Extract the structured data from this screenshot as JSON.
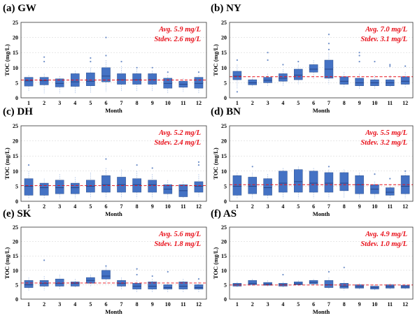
{
  "chart_data": [
    {
      "type": "box",
      "title": "(a) GW",
      "xlabel": "Month",
      "ylabel": "TOC (mg/L)",
      "ylim": [
        0,
        25
      ],
      "yticks": [
        0,
        5,
        10,
        15,
        20,
        25
      ],
      "categories": [
        "1",
        "2",
        "3",
        "4",
        "5",
        "6",
        "7",
        "8",
        "9",
        "10",
        "11",
        "12"
      ],
      "annotation_avg": "Avg. 5.9 mg/L",
      "annotation_stdev": "Stdev. 2.6 mg/L",
      "mean_line": 5.9,
      "boxes": [
        {
          "q1": 3.9,
          "med": 5.6,
          "q3": 6.8,
          "lo": 2.0,
          "hi": 7.5
        },
        {
          "q1": 4.3,
          "med": 5.7,
          "q3": 6.8,
          "lo": 1.5,
          "hi": 8.0
        },
        {
          "q1": 3.6,
          "med": 4.8,
          "q3": 6.3,
          "lo": 1.5,
          "hi": 7.2
        },
        {
          "q1": 3.8,
          "med": 5.3,
          "q3": 8.0,
          "lo": 1.5,
          "hi": 9.0
        },
        {
          "q1": 4.0,
          "med": 5.5,
          "q3": 8.3,
          "lo": 1.5,
          "hi": 10.0
        },
        {
          "q1": 5.3,
          "med": 7.2,
          "q3": 10.0,
          "lo": 2.0,
          "hi": 12.5
        },
        {
          "q1": 4.5,
          "med": 6.0,
          "q3": 8.0,
          "lo": 2.0,
          "hi": 10.5
        },
        {
          "q1": 4.5,
          "med": 6.0,
          "q3": 8.0,
          "lo": 2.0,
          "hi": 9.5
        },
        {
          "q1": 4.5,
          "med": 6.0,
          "q3": 8.0,
          "lo": 2.0,
          "hi": 9.0
        },
        {
          "q1": 3.2,
          "med": 4.8,
          "q3": 6.5,
          "lo": 1.5,
          "hi": 7.5
        },
        {
          "q1": 3.5,
          "med": 4.5,
          "q3": 5.5,
          "lo": 2.0,
          "hi": 6.5
        },
        {
          "q1": 3.2,
          "med": 4.8,
          "q3": 6.8,
          "lo": 1.5,
          "hi": 7.5
        }
      ],
      "outliers": [
        [
          2,
          13.5
        ],
        [
          2,
          12.0
        ],
        [
          5,
          12.0
        ],
        [
          5,
          13.2
        ],
        [
          6,
          20.0
        ],
        [
          6,
          14.0
        ],
        [
          7,
          12.0
        ],
        [
          8,
          10.0
        ],
        [
          9,
          10.0
        ],
        [
          10,
          8.5
        ],
        [
          12,
          8.5
        ]
      ]
    },
    {
      "type": "box",
      "title": "(b) NY",
      "xlabel": "Month",
      "ylabel": "TOC (mg/L)",
      "ylim": [
        0,
        25
      ],
      "yticks": [
        0,
        5,
        10,
        15,
        20,
        25
      ],
      "categories": [
        "1",
        "2",
        "3",
        "4",
        "5",
        "6",
        "7",
        "8",
        "9",
        "10",
        "11",
        "12"
      ],
      "annotation_avg": "Avg. 7.0 mg/L",
      "annotation_stdev": "Stdev. 3.1 mg/L",
      "mean_line": 7.0,
      "boxes": [
        {
          "q1": 6.0,
          "med": 7.2,
          "q3": 8.8,
          "lo": 3.0,
          "hi": 11.0
        },
        {
          "q1": 4.3,
          "med": 5.0,
          "q3": 6.0,
          "lo": 3.5,
          "hi": 7.0
        },
        {
          "q1": 5.0,
          "med": 5.8,
          "q3": 6.8,
          "lo": 4.0,
          "hi": 8.0
        },
        {
          "q1": 5.5,
          "med": 6.5,
          "q3": 8.0,
          "lo": 4.0,
          "hi": 9.5
        },
        {
          "q1": 6.0,
          "med": 7.5,
          "q3": 9.5,
          "lo": 4.5,
          "hi": 11.0
        },
        {
          "q1": 8.5,
          "med": 9.5,
          "q3": 11.0,
          "lo": 6.0,
          "hi": 12.5
        },
        {
          "q1": 6.5,
          "med": 9.5,
          "q3": 12.5,
          "lo": 4.5,
          "hi": 15.0
        },
        {
          "q1": 4.5,
          "med": 5.5,
          "q3": 7.0,
          "lo": 3.5,
          "hi": 8.5
        },
        {
          "q1": 4.0,
          "med": 5.0,
          "q3": 6.5,
          "lo": 3.0,
          "hi": 8.0
        },
        {
          "q1": 4.0,
          "med": 5.0,
          "q3": 6.0,
          "lo": 3.0,
          "hi": 7.5
        },
        {
          "q1": 4.0,
          "med": 5.0,
          "q3": 6.0,
          "lo": 3.5,
          "hi": 7.5
        },
        {
          "q1": 4.5,
          "med": 5.5,
          "q3": 7.0,
          "lo": 3.5,
          "hi": 8.5
        }
      ],
      "outliers": [
        [
          1,
          12.5
        ],
        [
          1,
          2.0
        ],
        [
          3,
          15.0
        ],
        [
          3,
          12.5
        ],
        [
          4,
          11.0
        ],
        [
          5,
          12.0
        ],
        [
          7,
          21.0
        ],
        [
          7,
          18.0
        ],
        [
          7,
          16.0
        ],
        [
          9,
          15.0
        ],
        [
          9,
          12.0
        ],
        [
          9,
          14.0
        ],
        [
          10,
          12.0
        ],
        [
          11,
          11.0
        ],
        [
          11,
          10.5
        ],
        [
          12,
          10.5
        ]
      ]
    },
    {
      "type": "box",
      "title": "(c) DH",
      "xlabel": "Month",
      "ylabel": "TOC (mg/L)",
      "ylim": [
        0,
        25
      ],
      "yticks": [
        0,
        5,
        10,
        15,
        20,
        25
      ],
      "categories": [
        "1",
        "2",
        "3",
        "4",
        "5",
        "6",
        "7",
        "8",
        "9",
        "10",
        "11",
        "12"
      ],
      "annotation_avg": "Avg. 5.2 mg/L",
      "annotation_stdev": "Stdev. 2.4 mg/L",
      "mean_line": 5.2,
      "boxes": [
        {
          "q1": 2.0,
          "med": 5.0,
          "q3": 7.5,
          "lo": 1.0,
          "hi": 10.0
        },
        {
          "q1": 2.0,
          "med": 4.5,
          "q3": 6.0,
          "lo": 1.0,
          "hi": 7.5
        },
        {
          "q1": 2.5,
          "med": 4.5,
          "q3": 7.0,
          "lo": 1.0,
          "hi": 9.0
        },
        {
          "q1": 2.5,
          "med": 4.5,
          "q3": 6.0,
          "lo": 1.0,
          "hi": 8.0
        },
        {
          "q1": 3.0,
          "med": 5.0,
          "q3": 7.0,
          "lo": 1.0,
          "hi": 9.5
        },
        {
          "q1": 3.0,
          "med": 5.5,
          "q3": 8.5,
          "lo": 1.0,
          "hi": 11.0
        },
        {
          "q1": 3.0,
          "med": 5.5,
          "q3": 8.0,
          "lo": 1.0,
          "hi": 10.5
        },
        {
          "q1": 3.0,
          "med": 5.5,
          "q3": 7.5,
          "lo": 1.0,
          "hi": 10.0
        },
        {
          "q1": 3.0,
          "med": 5.5,
          "q3": 7.0,
          "lo": 1.0,
          "hi": 9.0
        },
        {
          "q1": 2.5,
          "med": 4.0,
          "q3": 5.5,
          "lo": 1.0,
          "hi": 7.0
        },
        {
          "q1": 1.5,
          "med": 3.5,
          "q3": 5.5,
          "lo": 1.0,
          "hi": 6.5
        },
        {
          "q1": 3.0,
          "med": 5.0,
          "q3": 6.5,
          "lo": 1.5,
          "hi": 9.0
        }
      ],
      "outliers": [
        [
          1,
          12.0
        ],
        [
          6,
          14.0
        ],
        [
          8,
          12.0
        ],
        [
          9,
          11.0
        ],
        [
          12,
          13.0
        ],
        [
          12,
          12.0
        ]
      ]
    },
    {
      "type": "box",
      "title": "(d) BN",
      "xlabel": "Month",
      "ylabel": "TOC (mg/L)",
      "ylim": [
        0,
        25
      ],
      "yticks": [
        0,
        5,
        10,
        15,
        20,
        25
      ],
      "categories": [
        "1",
        "2",
        "3",
        "4",
        "5",
        "6",
        "7",
        "8",
        "9",
        "10",
        "11",
        "12"
      ],
      "annotation_avg": "Avg. 5.5 mg/L",
      "annotation_stdev": "Stdev. 3.2 mg/L",
      "mean_line": 5.5,
      "boxes": [
        {
          "q1": 2.0,
          "med": 5.0,
          "q3": 8.5,
          "lo": 1.0,
          "hi": 9.5
        },
        {
          "q1": 2.5,
          "med": 5.0,
          "q3": 8.0,
          "lo": 1.0,
          "hi": 9.5
        },
        {
          "q1": 2.0,
          "med": 4.5,
          "q3": 7.5,
          "lo": 1.0,
          "hi": 9.0
        },
        {
          "q1": 3.0,
          "med": 6.0,
          "q3": 10.0,
          "lo": 1.0,
          "hi": 11.0
        },
        {
          "q1": 3.0,
          "med": 6.5,
          "q3": 10.5,
          "lo": 1.0,
          "hi": 11.5
        },
        {
          "q1": 3.0,
          "med": 6.0,
          "q3": 10.0,
          "lo": 1.0,
          "hi": 11.0
        },
        {
          "q1": 3.0,
          "med": 6.0,
          "q3": 9.5,
          "lo": 1.0,
          "hi": 10.5
        },
        {
          "q1": 3.5,
          "med": 6.0,
          "q3": 9.5,
          "lo": 1.0,
          "hi": 10.5
        },
        {
          "q1": 2.5,
          "med": 5.5,
          "q3": 8.5,
          "lo": 1.0,
          "hi": 9.5
        },
        {
          "q1": 2.5,
          "med": 4.0,
          "q3": 5.5,
          "lo": 1.0,
          "hi": 6.5
        },
        {
          "q1": 2.0,
          "med": 3.0,
          "q3": 4.5,
          "lo": 1.0,
          "hi": 5.5
        },
        {
          "q1": 2.5,
          "med": 5.0,
          "q3": 8.5,
          "lo": 1.0,
          "hi": 9.5
        }
      ],
      "outliers": [
        [
          2,
          11.5
        ],
        [
          7,
          11.5
        ],
        [
          10,
          9.0
        ],
        [
          11,
          7.5
        ],
        [
          12,
          10.0
        ]
      ]
    },
    {
      "type": "box",
      "title": "(e) SK",
      "xlabel": "Month",
      "ylabel": "TOC (mg/L)",
      "ylim": [
        0,
        25
      ],
      "yticks": [
        0,
        5,
        10,
        15,
        20,
        25
      ],
      "categories": [
        "1",
        "2",
        "3",
        "4",
        "5",
        "6",
        "7",
        "8",
        "9",
        "10",
        "11",
        "12"
      ],
      "annotation_avg": "Avg. 5.6 mg/L",
      "annotation_stdev": "Stdev. 1.8 mg/L",
      "mean_line": 5.6,
      "boxes": [
        {
          "q1": 4.0,
          "med": 5.0,
          "q3": 6.5,
          "lo": 3.0,
          "hi": 7.5
        },
        {
          "q1": 4.5,
          "med": 5.5,
          "q3": 6.5,
          "lo": 3.0,
          "hi": 8.0
        },
        {
          "q1": 4.5,
          "med": 5.5,
          "q3": 7.0,
          "lo": 3.5,
          "hi": 8.5
        },
        {
          "q1": 4.5,
          "med": 5.5,
          "q3": 6.0,
          "lo": 4.0,
          "hi": 7.0
        },
        {
          "q1": 5.5,
          "med": 6.5,
          "q3": 7.5,
          "lo": 4.5,
          "hi": 8.5
        },
        {
          "q1": 7.0,
          "med": 8.0,
          "q3": 10.0,
          "lo": 5.0,
          "hi": 11.0
        },
        {
          "q1": 4.5,
          "med": 5.5,
          "q3": 6.5,
          "lo": 3.5,
          "hi": 7.5
        },
        {
          "q1": 3.5,
          "med": 4.5,
          "q3": 5.5,
          "lo": 2.5,
          "hi": 6.5
        },
        {
          "q1": 3.5,
          "med": 4.5,
          "q3": 6.0,
          "lo": 2.5,
          "hi": 7.0
        },
        {
          "q1": 3.5,
          "med": 4.0,
          "q3": 5.0,
          "lo": 2.5,
          "hi": 6.0
        },
        {
          "q1": 3.5,
          "med": 4.5,
          "q3": 6.0,
          "lo": 2.5,
          "hi": 7.0
        },
        {
          "q1": 3.5,
          "med": 4.0,
          "q3": 5.0,
          "lo": 2.5,
          "hi": 6.0
        }
      ],
      "outliers": [
        [
          2,
          13.5
        ],
        [
          6,
          11.5
        ],
        [
          8,
          10.5
        ],
        [
          8,
          8.5
        ],
        [
          9,
          8.0
        ],
        [
          10,
          9.5
        ],
        [
          12,
          7.0
        ]
      ]
    },
    {
      "type": "box",
      "title": "(f) AS",
      "xlabel": "Month",
      "ylabel": "TOC (mg/L)",
      "ylim": [
        0,
        25
      ],
      "yticks": [
        0,
        5,
        10,
        15,
        20,
        25
      ],
      "categories": [
        "1",
        "2",
        "3",
        "4",
        "5",
        "6",
        "7",
        "8",
        "9",
        "10",
        "11",
        "12"
      ],
      "annotation_avg": "Avg. 4.9 mg/L",
      "annotation_stdev": "Stdev. 1.0 mg/L",
      "mean_line": 4.9,
      "boxes": [
        {
          "q1": 4.5,
          "med": 5.0,
          "q3": 5.5,
          "lo": 4.0,
          "hi": 6.0
        },
        {
          "q1": 5.0,
          "med": 5.5,
          "q3": 6.5,
          "lo": 4.5,
          "hi": 7.0
        },
        {
          "q1": 4.8,
          "med": 5.2,
          "q3": 5.8,
          "lo": 4.3,
          "hi": 6.5
        },
        {
          "q1": 4.5,
          "med": 5.0,
          "q3": 5.5,
          "lo": 4.0,
          "hi": 6.0
        },
        {
          "q1": 5.0,
          "med": 5.3,
          "q3": 6.0,
          "lo": 4.5,
          "hi": 6.5
        },
        {
          "q1": 5.3,
          "med": 5.8,
          "q3": 6.5,
          "lo": 4.8,
          "hi": 7.0
        },
        {
          "q1": 4.0,
          "med": 5.0,
          "q3": 6.5,
          "lo": 3.5,
          "hi": 7.5
        },
        {
          "q1": 3.8,
          "med": 4.5,
          "q3": 5.5,
          "lo": 3.0,
          "hi": 6.5
        },
        {
          "q1": 3.8,
          "med": 4.3,
          "q3": 5.0,
          "lo": 3.2,
          "hi": 5.5
        },
        {
          "q1": 3.5,
          "med": 4.0,
          "q3": 4.5,
          "lo": 3.0,
          "hi": 5.0
        },
        {
          "q1": 3.8,
          "med": 4.3,
          "q3": 5.0,
          "lo": 3.2,
          "hi": 5.5
        },
        {
          "q1": 3.8,
          "med": 4.2,
          "q3": 4.8,
          "lo": 3.2,
          "hi": 5.3
        }
      ],
      "outliers": [
        [
          4,
          8.5
        ],
        [
          7,
          9.5
        ],
        [
          8,
          11.0
        ]
      ]
    }
  ]
}
